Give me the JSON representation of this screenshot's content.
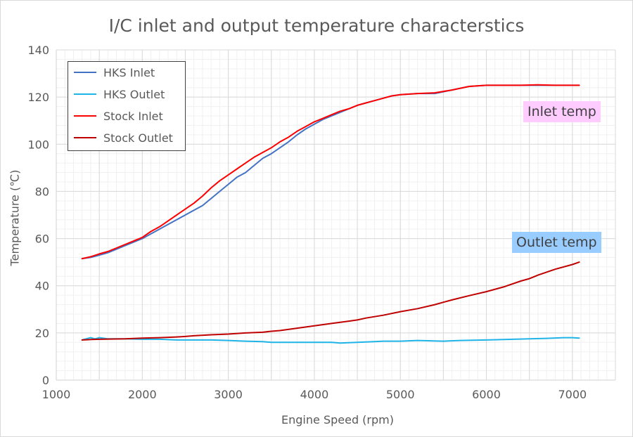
{
  "chart_data": {
    "type": "line",
    "title": "I/C inlet and output temperature characterstics",
    "xlabel": "Engine Speed (rpm)",
    "ylabel": "Temperature (℃)",
    "xlim": [
      1000,
      7500
    ],
    "ylim": [
      0,
      140
    ],
    "x_ticks": [
      1000,
      2000,
      3000,
      4000,
      5000,
      6000,
      7000
    ],
    "y_ticks": [
      0,
      20,
      40,
      60,
      80,
      100,
      120,
      140
    ],
    "x_tick_labels": [
      "1000",
      "2000",
      "3000",
      "4000",
      "5000",
      "6000",
      "7000"
    ],
    "y_tick_labels": [
      "0",
      "20",
      "40",
      "60",
      "80",
      "100",
      "120",
      "140"
    ],
    "grid": true,
    "legend_position": "top-left",
    "series": [
      {
        "name": "HKS Inlet",
        "color": "#4472c4",
        "x": [
          1300,
          1400,
          1500,
          1600,
          1700,
          1800,
          1900,
          2000,
          2100,
          2200,
          2300,
          2400,
          2500,
          2600,
          2700,
          2800,
          2900,
          3000,
          3100,
          3200,
          3300,
          3400,
          3500,
          3600,
          3700,
          3800,
          3900,
          4000,
          4100,
          4200,
          4300,
          4400,
          4500,
          4600,
          4700,
          4800,
          4900,
          5000,
          5200,
          5400,
          5600,
          5800,
          6000,
          6200,
          6400,
          6600,
          6800,
          7000,
          7080
        ],
        "values": [
          51.5,
          52,
          53,
          54,
          55.5,
          57,
          58.5,
          60,
          62,
          64,
          66,
          68,
          70,
          72,
          74,
          77,
          80,
          83,
          86,
          88,
          91,
          94,
          96,
          98.5,
          101,
          104,
          106.5,
          108.5,
          110.5,
          112,
          113.5,
          115,
          116.5,
          117.5,
          118.5,
          119.5,
          120.5,
          121,
          121.5,
          121.5,
          123,
          124.5,
          125,
          125,
          125,
          125,
          125,
          125,
          125
        ]
      },
      {
        "name": "HKS Outlet",
        "color": "#1fb4e8",
        "x": [
          1300,
          1400,
          1450,
          1500,
          1600,
          1800,
          2000,
          2200,
          2400,
          2600,
          2800,
          3000,
          3200,
          3400,
          3500,
          3800,
          4000,
          4200,
          4300,
          4500,
          4700,
          4800,
          5000,
          5200,
          5500,
          5700,
          6000,
          6200,
          6500,
          6700,
          6900,
          7000,
          7080
        ],
        "values": [
          17,
          18,
          17.5,
          18,
          17.5,
          17.5,
          17.3,
          17.3,
          17,
          17,
          17,
          16.8,
          16.5,
          16.3,
          16,
          16,
          16,
          16,
          15.7,
          16,
          16.3,
          16.5,
          16.5,
          16.8,
          16.5,
          16.8,
          17,
          17.2,
          17.5,
          17.7,
          18,
          18,
          17.8
        ]
      },
      {
        "name": "Stock Inlet",
        "color": "#ff0000",
        "x": [
          1300,
          1400,
          1500,
          1600,
          1700,
          1800,
          1900,
          2000,
          2100,
          2200,
          2300,
          2400,
          2500,
          2600,
          2700,
          2800,
          2900,
          3000,
          3100,
          3200,
          3300,
          3400,
          3500,
          3600,
          3700,
          3800,
          3900,
          4000,
          4100,
          4200,
          4300,
          4400,
          4500,
          4600,
          4700,
          4800,
          4900,
          5000,
          5200,
          5400,
          5600,
          5800,
          6000,
          6200,
          6400,
          6600,
          6800,
          7000,
          7080
        ],
        "values": [
          51.5,
          52.3,
          53.5,
          54.5,
          56,
          57.5,
          59,
          60.5,
          63,
          65,
          67.5,
          70,
          72.5,
          75,
          78,
          81.5,
          84.5,
          87,
          89.5,
          92,
          94.5,
          96.5,
          98.5,
          101,
          103,
          105.5,
          107.5,
          109.5,
          111,
          112.5,
          114,
          115,
          116.5,
          117.5,
          118.5,
          119.5,
          120.5,
          121,
          121.5,
          121.8,
          123,
          124.5,
          125,
          125,
          125,
          125.2,
          125,
          125,
          125
        ]
      },
      {
        "name": "Stock Outlet",
        "color": "#c00000",
        "x": [
          1300,
          1400,
          1500,
          1800,
          2000,
          2200,
          2400,
          2500,
          2600,
          2800,
          3000,
          3200,
          3400,
          3500,
          3600,
          3800,
          4000,
          4200,
          4400,
          4500,
          4600,
          4800,
          5000,
          5200,
          5400,
          5500,
          5600,
          5800,
          6000,
          6200,
          6400,
          6500,
          6600,
          6800,
          7000,
          7080
        ],
        "values": [
          17,
          17.2,
          17.3,
          17.5,
          17.8,
          18,
          18.3,
          18.5,
          18.8,
          19.2,
          19.5,
          20,
          20.3,
          20.7,
          21,
          22,
          23,
          24,
          25,
          25.5,
          26.3,
          27.5,
          29,
          30.3,
          32,
          33,
          34,
          35.8,
          37.5,
          39.5,
          42,
          43,
          44.5,
          47,
          49,
          50
        ]
      }
    ],
    "annotations": [
      {
        "text": "Inlet temp",
        "background": "#ffccff"
      },
      {
        "text": "Outlet temp",
        "background": "#99ccff"
      }
    ]
  }
}
